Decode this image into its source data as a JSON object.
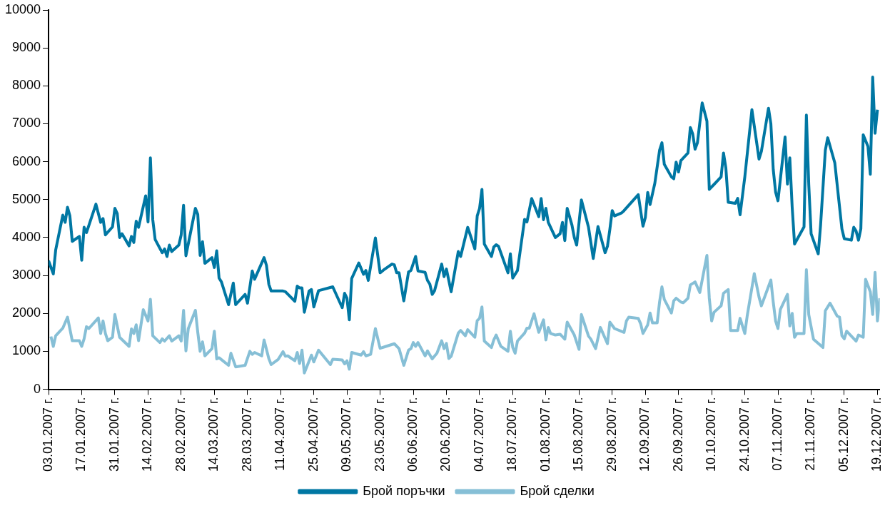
{
  "chart_data": {
    "type": "line",
    "xlim": [
      "2007-01-03",
      "2007-12-20"
    ],
    "ylim": [
      0,
      10000
    ],
    "yticks": [
      0,
      1000,
      2000,
      3000,
      4000,
      5000,
      6000,
      7000,
      8000,
      9000,
      10000
    ],
    "xticks": [
      {
        "value": "2007-01-03",
        "label": "03.01.2007 г."
      },
      {
        "value": "2007-01-17",
        "label": "17.01.2007 г."
      },
      {
        "value": "2007-01-31",
        "label": "31.01.2007 г."
      },
      {
        "value": "2007-02-14",
        "label": "14.02.2007 г."
      },
      {
        "value": "2007-02-28",
        "label": "28.02.2007 г."
      },
      {
        "value": "2007-03-14",
        "label": "14.03.2007 г."
      },
      {
        "value": "2007-03-28",
        "label": "28.03.2007 г."
      },
      {
        "value": "2007-04-11",
        "label": "11.04.2007 г."
      },
      {
        "value": "2007-04-25",
        "label": "25.04.2007 г."
      },
      {
        "value": "2007-05-09",
        "label": "09.05.2007 г."
      },
      {
        "value": "2007-05-23",
        "label": "23.05.2007 г."
      },
      {
        "value": "2007-06-06",
        "label": "06.06.2007 г."
      },
      {
        "value": "2007-06-20",
        "label": "20.06.2007 г."
      },
      {
        "value": "2007-07-04",
        "label": "04.07.2007 г."
      },
      {
        "value": "2007-07-18",
        "label": "18.07.2007 г."
      },
      {
        "value": "2007-08-01",
        "label": "01.08.2007 г."
      },
      {
        "value": "2007-08-15",
        "label": "15.08.2007 г."
      },
      {
        "value": "2007-08-29",
        "label": "29.08.2007 г."
      },
      {
        "value": "2007-09-12",
        "label": "12.09.2007 г."
      },
      {
        "value": "2007-09-26",
        "label": "26.09.2007 г."
      },
      {
        "value": "2007-10-10",
        "label": "10.10.2007 г."
      },
      {
        "value": "2007-10-24",
        "label": "24.10.2007 г."
      },
      {
        "value": "2007-11-07",
        "label": "07.11.2007 г."
      },
      {
        "value": "2007-11-21",
        "label": "21.11.2007 г."
      },
      {
        "value": "2007-12-05",
        "label": "05.12.2007 г."
      },
      {
        "value": "2007-12-19",
        "label": "19.12.2007 г."
      }
    ],
    "legend": "bottom",
    "series": [
      {
        "name": "Брой поръчки",
        "color": "#0077a3",
        "x": [
          "2007-01-03",
          "2007-01-05",
          "2007-01-06",
          "2007-01-09",
          "2007-01-10",
          "2007-01-11",
          "2007-01-12",
          "2007-01-13",
          "2007-01-16",
          "2007-01-17",
          "2007-01-18",
          "2007-01-19",
          "2007-01-23",
          "2007-01-25",
          "2007-01-26",
          "2007-01-27",
          "2007-01-30",
          "2007-01-31",
          "2007-02-01",
          "2007-02-02",
          "2007-02-03",
          "2007-02-06",
          "2007-02-07",
          "2007-02-08",
          "2007-02-09",
          "2007-02-10",
          "2007-02-13",
          "2007-02-14",
          "2007-02-15",
          "2007-02-16",
          "2007-02-17",
          "2007-02-20",
          "2007-02-21",
          "2007-02-22",
          "2007-02-23",
          "2007-02-24",
          "2007-02-27",
          "2007-02-28",
          "2007-03-01",
          "2007-03-02",
          "2007-03-06",
          "2007-03-07",
          "2007-03-08",
          "2007-03-09",
          "2007-03-10",
          "2007-03-13",
          "2007-03-14",
          "2007-03-15",
          "2007-03-16",
          "2007-03-17",
          "2007-03-20",
          "2007-03-22",
          "2007-03-23",
          "2007-03-27",
          "2007-03-28",
          "2007-03-30",
          "2007-03-31",
          "2007-04-04",
          "2007-04-05",
          "2007-04-06",
          "2007-04-07",
          "2007-04-12",
          "2007-04-13",
          "2007-04-17",
          "2007-04-18",
          "2007-04-19",
          "2007-04-20",
          "2007-04-21",
          "2007-04-23",
          "2007-04-24",
          "2007-04-25",
          "2007-04-27",
          "2007-05-03",
          "2007-05-07",
          "2007-05-08",
          "2007-05-09",
          "2007-05-10",
          "2007-05-11",
          "2007-05-14",
          "2007-05-16",
          "2007-05-17",
          "2007-05-18",
          "2007-05-21",
          "2007-05-23",
          "2007-05-25",
          "2007-05-28",
          "2007-05-29",
          "2007-05-30",
          "2007-05-31",
          "2007-06-02",
          "2007-06-04",
          "2007-06-05",
          "2007-06-07",
          "2007-06-08",
          "2007-06-11",
          "2007-06-12",
          "2007-06-13",
          "2007-06-14",
          "2007-06-15",
          "2007-06-18",
          "2007-06-19",
          "2007-06-20",
          "2007-06-22",
          "2007-06-25",
          "2007-06-26",
          "2007-06-29",
          "2007-07-02",
          "2007-07-03",
          "2007-07-04",
          "2007-07-05",
          "2007-07-06",
          "2007-07-09",
          "2007-07-10",
          "2007-07-11",
          "2007-07-12",
          "2007-07-16",
          "2007-07-17",
          "2007-07-18",
          "2007-07-20",
          "2007-07-23",
          "2007-07-24",
          "2007-07-26",
          "2007-07-29",
          "2007-07-30",
          "2007-07-31",
          "2007-08-01",
          "2007-08-02",
          "2007-08-05",
          "2007-08-07",
          "2007-08-08",
          "2007-08-09",
          "2007-08-10",
          "2007-08-12",
          "2007-08-13",
          "2007-08-14",
          "2007-08-16",
          "2007-08-19",
          "2007-08-21",
          "2007-08-23",
          "2007-08-26",
          "2007-08-27",
          "2007-08-28",
          "2007-08-29",
          "2007-08-30",
          "2007-09-02",
          "2007-09-03",
          "2007-09-09",
          "2007-09-11",
          "2007-09-12",
          "2007-09-13",
          "2007-09-14",
          "2007-09-16",
          "2007-09-18",
          "2007-09-19",
          "2007-09-20",
          "2007-09-23",
          "2007-09-24",
          "2007-09-25",
          "2007-09-26",
          "2007-09-27",
          "2007-09-30",
          "2007-10-01",
          "2007-10-02",
          "2007-10-03",
          "2007-10-04",
          "2007-10-06",
          "2007-10-08",
          "2007-10-09",
          "2007-10-11",
          "2007-10-14",
          "2007-10-15",
          "2007-10-16",
          "2007-10-17",
          "2007-10-20",
          "2007-10-21",
          "2007-10-22",
          "2007-10-24",
          "2007-10-27",
          "2007-10-30",
          "2007-10-31",
          "2007-11-03",
          "2007-11-04",
          "2007-11-05",
          "2007-11-06",
          "2007-11-07",
          "2007-11-10",
          "2007-11-11",
          "2007-11-12",
          "2007-11-13",
          "2007-11-14",
          "2007-11-18",
          "2007-11-19",
          "2007-11-20",
          "2007-11-21",
          "2007-11-24",
          "2007-11-25",
          "2007-11-27",
          "2007-11-28",
          "2007-12-01",
          "2007-12-04",
          "2007-12-05",
          "2007-12-08",
          "2007-12-09",
          "2007-12-10",
          "2007-12-11",
          "2007-12-12",
          "2007-12-13",
          "2007-12-15",
          "2007-12-16",
          "2007-12-17",
          "2007-12-18",
          "2007-12-19"
        ],
        "values": [
          3390,
          3040,
          3670,
          4590,
          4400,
          4800,
          4570,
          3900,
          4030,
          3400,
          4270,
          4130,
          4880,
          4400,
          4500,
          4070,
          4280,
          4770,
          4630,
          4000,
          4100,
          3780,
          4030,
          3870,
          4430,
          4270,
          5100,
          4410,
          6100,
          4470,
          3950,
          3600,
          3700,
          3500,
          3800,
          3630,
          3800,
          4070,
          4850,
          3520,
          4770,
          4610,
          3530,
          3890,
          3320,
          3470,
          3210,
          3650,
          2930,
          2830,
          2230,
          2800,
          2230,
          2500,
          2270,
          3120,
          2900,
          3470,
          3270,
          2770,
          2590,
          2590,
          2570,
          2320,
          2720,
          2670,
          2670,
          2030,
          2590,
          2630,
          2170,
          2600,
          2700,
          2150,
          2530,
          2400,
          1830,
          2920,
          3330,
          3030,
          3130,
          2870,
          3990,
          3070,
          3170,
          3300,
          3280,
          3070,
          3070,
          2330,
          3090,
          3130,
          3500,
          3120,
          3080,
          2870,
          2770,
          2500,
          2600,
          3300,
          2970,
          3170,
          2570,
          3630,
          3500,
          4270,
          3700,
          4570,
          4770,
          5270,
          3830,
          3500,
          3750,
          3810,
          3770,
          3070,
          3570,
          2930,
          3130,
          4480,
          4410,
          5030,
          4550,
          5030,
          4470,
          4770,
          4400,
          4000,
          4100,
          4400,
          3920,
          4770,
          4330,
          4000,
          3800,
          4990,
          4270,
          3450,
          4290,
          3600,
          3770,
          4210,
          4710,
          4570,
          4650,
          4710,
          5130,
          4300,
          4530,
          5190,
          4870,
          5430,
          6300,
          6500,
          5930,
          5600,
          5550,
          5990,
          5730,
          6030,
          6230,
          6900,
          6730,
          6330,
          6500,
          7550,
          7070,
          5270,
          5400,
          5600,
          6230,
          5830,
          4930,
          4900,
          5030,
          4600,
          5600,
          7370,
          6070,
          6270,
          7410,
          7000,
          5800,
          5200,
          4970,
          6650,
          5410,
          6100,
          4800,
          3830,
          4280,
          7230,
          5400,
          4100,
          3570,
          4330,
          6300,
          6630,
          5970,
          4230,
          3970,
          3930,
          4270,
          4170,
          3930,
          4230,
          6710,
          6400,
          5670,
          8230,
          6750,
          7370
        ]
      },
      {
        "name": "Брой сделки",
        "color": "#86bfd6",
        "x": [
          "2007-01-04",
          "2007-01-05",
          "2007-01-06",
          "2007-01-09",
          "2007-01-11",
          "2007-01-13",
          "2007-01-16",
          "2007-01-17",
          "2007-01-18",
          "2007-01-19",
          "2007-01-20",
          "2007-01-24",
          "2007-01-25",
          "2007-01-26",
          "2007-01-27",
          "2007-01-28",
          "2007-01-30",
          "2007-01-31",
          "2007-02-01",
          "2007-02-02",
          "2007-02-06",
          "2007-02-07",
          "2007-02-08",
          "2007-02-09",
          "2007-02-10",
          "2007-02-12",
          "2007-02-14",
          "2007-02-15",
          "2007-02-16",
          "2007-02-19",
          "2007-02-20",
          "2007-02-21",
          "2007-02-23",
          "2007-02-24",
          "2007-02-27",
          "2007-02-28",
          "2007-03-01",
          "2007-03-02",
          "2007-03-03",
          "2007-03-06",
          "2007-03-07",
          "2007-03-08",
          "2007-03-09",
          "2007-03-10",
          "2007-03-13",
          "2007-03-14",
          "2007-03-15",
          "2007-03-16",
          "2007-03-20",
          "2007-03-21",
          "2007-03-23",
          "2007-03-27",
          "2007-03-29",
          "2007-03-30",
          "2007-03-31",
          "2007-04-03",
          "2007-04-04",
          "2007-04-06",
          "2007-04-07",
          "2007-04-10",
          "2007-04-12",
          "2007-04-13",
          "2007-04-14",
          "2007-04-17",
          "2007-04-18",
          "2007-04-19",
          "2007-04-20",
          "2007-04-21",
          "2007-04-24",
          "2007-04-25",
          "2007-04-27",
          "2007-05-02",
          "2007-05-03",
          "2007-05-07",
          "2007-05-08",
          "2007-05-09",
          "2007-05-10",
          "2007-05-11",
          "2007-05-15",
          "2007-05-16",
          "2007-05-17",
          "2007-05-19",
          "2007-05-21",
          "2007-05-23",
          "2007-05-25",
          "2007-05-29",
          "2007-05-31",
          "2007-06-02",
          "2007-06-04",
          "2007-06-05",
          "2007-06-06",
          "2007-06-07",
          "2007-06-08",
          "2007-06-11",
          "2007-06-12",
          "2007-06-14",
          "2007-06-16",
          "2007-06-18",
          "2007-06-19",
          "2007-06-20",
          "2007-06-21",
          "2007-06-22",
          "2007-06-25",
          "2007-06-26",
          "2007-06-28",
          "2007-06-29",
          "2007-07-02",
          "2007-07-03",
          "2007-07-04",
          "2007-07-05",
          "2007-07-06",
          "2007-07-09",
          "2007-07-10",
          "2007-07-11",
          "2007-07-13",
          "2007-07-16",
          "2007-07-17",
          "2007-07-18",
          "2007-07-19",
          "2007-07-20",
          "2007-07-23",
          "2007-07-24",
          "2007-07-25",
          "2007-07-27",
          "2007-07-29",
          "2007-07-31",
          "2007-08-01",
          "2007-08-02",
          "2007-08-03",
          "2007-08-05",
          "2007-08-07",
          "2007-08-09",
          "2007-08-10",
          "2007-08-13",
          "2007-08-15",
          "2007-08-16",
          "2007-08-19",
          "2007-08-20",
          "2007-08-22",
          "2007-08-24",
          "2007-08-27",
          "2007-08-28",
          "2007-08-30",
          "2007-09-03",
          "2007-09-04",
          "2007-09-05",
          "2007-09-09",
          "2007-09-10",
          "2007-09-11",
          "2007-09-13",
          "2007-09-14",
          "2007-09-15",
          "2007-09-17",
          "2007-09-18",
          "2007-09-19",
          "2007-09-20",
          "2007-09-23",
          "2007-09-24",
          "2007-09-25",
          "2007-09-27",
          "2007-09-28",
          "2007-09-30",
          "2007-10-01",
          "2007-10-03",
          "2007-10-05",
          "2007-10-08",
          "2007-10-09",
          "2007-10-10",
          "2007-10-11",
          "2007-10-14",
          "2007-10-15",
          "2007-10-17",
          "2007-10-18",
          "2007-10-21",
          "2007-10-22",
          "2007-10-24",
          "2007-10-25",
          "2007-10-28",
          "2007-10-30",
          "2007-10-31",
          "2007-11-04",
          "2007-11-05",
          "2007-11-06",
          "2007-11-07",
          "2007-11-08",
          "2007-11-11",
          "2007-11-12",
          "2007-11-13",
          "2007-11-14",
          "2007-11-15",
          "2007-11-18",
          "2007-11-19",
          "2007-11-20",
          "2007-11-22",
          "2007-11-26",
          "2007-11-27",
          "2007-11-29",
          "2007-12-02",
          "2007-12-03",
          "2007-12-04",
          "2007-12-05",
          "2007-12-06",
          "2007-12-10",
          "2007-12-11",
          "2007-12-13",
          "2007-12-14",
          "2007-12-16",
          "2007-12-17",
          "2007-12-18",
          "2007-12-19",
          "2007-12-20"
        ],
        "values": [
          1390,
          1130,
          1410,
          1610,
          1900,
          1280,
          1280,
          1130,
          1330,
          1650,
          1600,
          1880,
          1470,
          1800,
          1470,
          1280,
          1370,
          1970,
          1670,
          1370,
          1130,
          1590,
          1470,
          1700,
          1280,
          2100,
          1800,
          2370,
          1410,
          1230,
          1330,
          1270,
          1410,
          1270,
          1410,
          1270,
          2080,
          1010,
          1600,
          2080,
          1500,
          1000,
          1250,
          880,
          1070,
          1530,
          800,
          830,
          630,
          950,
          590,
          630,
          1000,
          920,
          970,
          880,
          1300,
          810,
          650,
          790,
          990,
          870,
          880,
          750,
          970,
          680,
          1030,
          430,
          900,
          720,
          1030,
          650,
          790,
          770,
          670,
          750,
          530,
          970,
          900,
          990,
          880,
          920,
          1600,
          1080,
          1120,
          1200,
          1070,
          630,
          1030,
          1070,
          1230,
          1130,
          1230,
          880,
          1010,
          800,
          950,
          1280,
          1070,
          1210,
          810,
          870,
          1480,
          1550,
          1410,
          1570,
          1370,
          1810,
          1870,
          2170,
          1270,
          1100,
          1300,
          1430,
          1130,
          1000,
          1530,
          1100,
          950,
          1270,
          1480,
          1610,
          1610,
          1990,
          1500,
          1830,
          1300,
          1630,
          1470,
          1430,
          1450,
          1320,
          1770,
          1430,
          1050,
          1970,
          1400,
          1320,
          1070,
          1630,
          1200,
          1770,
          1600,
          1500,
          1800,
          1900,
          1870,
          1730,
          1470,
          1700,
          2010,
          1750,
          1750,
          2300,
          2700,
          2370,
          2010,
          2330,
          2400,
          2300,
          2280,
          2400,
          2750,
          2830,
          2550,
          3530,
          2400,
          1800,
          2030,
          2200,
          2530,
          2630,
          1550,
          1550,
          1870,
          1470,
          1930,
          3050,
          2430,
          2200,
          2880,
          2300,
          1800,
          1600,
          2100,
          2500,
          1670,
          2000,
          1370,
          1470,
          1470,
          3150,
          1970,
          1320,
          1100,
          2070,
          2270,
          1930,
          1900,
          1410,
          1330,
          1530,
          1270,
          1430,
          1370,
          2900,
          2570,
          1970,
          3080,
          1800,
          2400
        ]
      }
    ]
  }
}
